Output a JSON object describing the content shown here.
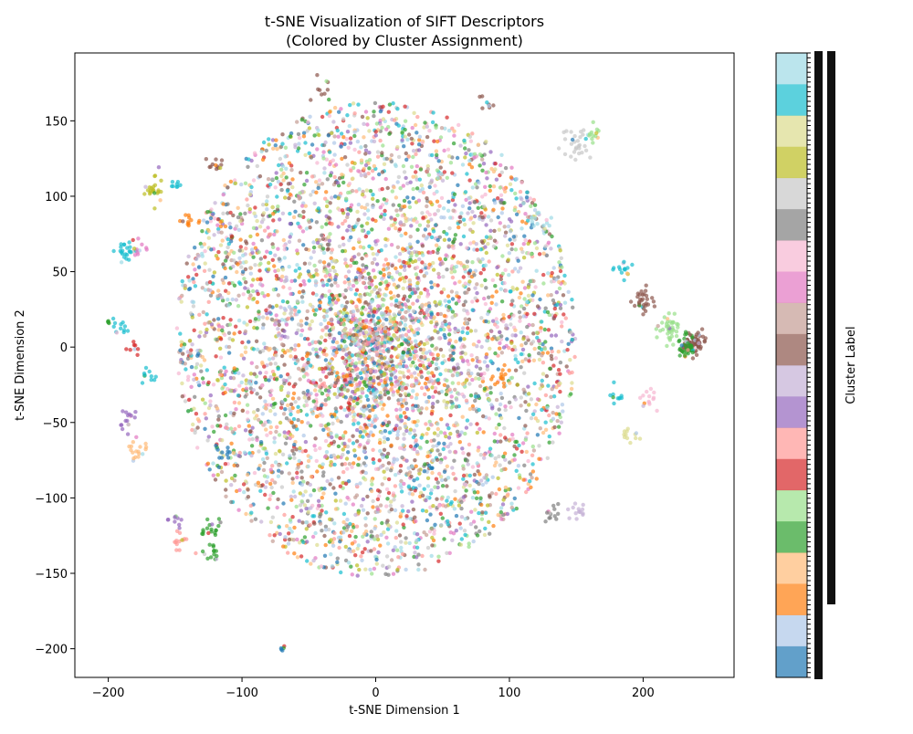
{
  "chart_data": {
    "type": "scatter",
    "title": "t-SNE Visualization of SIFT Descriptors",
    "subtitle": "(Colored by Cluster Assignment)",
    "xlabel": "t-SNE Dimension 1",
    "ylabel": "t-SNE Dimension 2",
    "xlim": [
      -225,
      268
    ],
    "ylim": [
      -219,
      195
    ],
    "xticks": [
      -200,
      -100,
      0,
      100,
      200
    ],
    "xtick_labels": [
      "−200",
      "−100",
      "0",
      "100",
      "200"
    ],
    "yticks": [
      -200,
      -150,
      -100,
      -50,
      0,
      50,
      100,
      150
    ],
    "ytick_labels": [
      "−200",
      "−150",
      "−100",
      "−50",
      "0",
      "50",
      "100",
      "150"
    ],
    "grid": false,
    "colorbar": {
      "label": "Cluster Label",
      "colormap": "tab20",
      "colors": [
        "#1f77b4",
        "#aec7e8",
        "#ff7f0e",
        "#ffbb78",
        "#2ca02c",
        "#98df8a",
        "#d62728",
        "#ff9896",
        "#9467bd",
        "#c5b0d5",
        "#8c564b",
        "#c49c94",
        "#e377c2",
        "#f7b6d2",
        "#7f7f7f",
        "#c7c7c7",
        "#bcbd22",
        "#dbdb8d",
        "#17becf",
        "#9edae5"
      ]
    },
    "point_alpha": 0.7,
    "point_radius": 2.2,
    "clusters": [
      {
        "x": 0,
        "y": 5,
        "r": 150,
        "n": 4600
      },
      {
        "x": 0,
        "y": -5,
        "r": 40,
        "n": 500
      },
      {
        "x": 237,
        "y": 3,
        "r": 7,
        "n": 70,
        "c": 10
      },
      {
        "x": 220,
        "y": 12,
        "r": 8,
        "n": 40,
        "c": 5
      },
      {
        "x": 232,
        "y": 0,
        "r": 7,
        "n": 40,
        "c": 4
      },
      {
        "x": 200,
        "y": 30,
        "r": 8,
        "n": 30,
        "c": 10
      },
      {
        "x": 185,
        "y": 50,
        "r": 6,
        "n": 15,
        "c": 18
      },
      {
        "x": 190,
        "y": -60,
        "r": 6,
        "n": 12,
        "c": 17
      },
      {
        "x": 205,
        "y": -35,
        "r": 8,
        "n": 14,
        "c": 13
      },
      {
        "x": 180,
        "y": -32,
        "r": 5,
        "n": 10,
        "c": 18
      },
      {
        "x": 150,
        "y": 135,
        "r": 9,
        "n": 30,
        "c": 15
      },
      {
        "x": 163,
        "y": 140,
        "r": 5,
        "n": 12,
        "c": 5
      },
      {
        "x": -187,
        "y": 65,
        "r": 6,
        "n": 22,
        "c": 18
      },
      {
        "x": -178,
        "y": 65,
        "r": 5,
        "n": 12,
        "c": 12
      },
      {
        "x": -190,
        "y": 12,
        "r": 6,
        "n": 12,
        "c": 18
      },
      {
        "x": -200,
        "y": 16,
        "r": 2,
        "n": 4,
        "c": 4
      },
      {
        "x": -165,
        "y": 105,
        "r": 8,
        "n": 24,
        "c": 16
      },
      {
        "x": -148,
        "y": 108,
        "r": 4,
        "n": 8,
        "c": 18
      },
      {
        "x": -185,
        "y": -48,
        "r": 6,
        "n": 16,
        "c": 8
      },
      {
        "x": -178,
        "y": -68,
        "r": 7,
        "n": 18,
        "c": 3
      },
      {
        "x": -170,
        "y": -18,
        "r": 6,
        "n": 10,
        "c": 18
      },
      {
        "x": -180,
        "y": -2,
        "r": 5,
        "n": 8,
        "c": 6
      },
      {
        "x": -140,
        "y": 84,
        "r": 6,
        "n": 12,
        "c": 2
      },
      {
        "x": -120,
        "y": 120,
        "r": 6,
        "n": 12,
        "c": 10
      },
      {
        "x": -125,
        "y": -120,
        "r": 7,
        "n": 18,
        "c": 4
      },
      {
        "x": -122,
        "y": -136,
        "r": 6,
        "n": 14,
        "c": 4
      },
      {
        "x": -145,
        "y": -128,
        "r": 6,
        "n": 14,
        "c": 7
      },
      {
        "x": -150,
        "y": -115,
        "r": 5,
        "n": 10,
        "c": 8
      },
      {
        "x": -113,
        "y": -72,
        "r": 6,
        "n": 12,
        "c": 0
      },
      {
        "x": -70,
        "y": -200,
        "r": 2,
        "n": 5,
        "c": 0
      },
      {
        "x": 130,
        "y": -112,
        "r": 7,
        "n": 14,
        "c": 14
      },
      {
        "x": 150,
        "y": -110,
        "r": 8,
        "n": 14,
        "c": 9
      },
      {
        "x": 82,
        "y": 163,
        "r": 5,
        "n": 8,
        "c": 10
      },
      {
        "x": -40,
        "y": 170,
        "r": 8,
        "n": 10,
        "c": 10
      },
      {
        "x": 95,
        "y": -20,
        "r": 8,
        "n": 14,
        "c": 2
      },
      {
        "x": 120,
        "y": 85,
        "r": 8,
        "n": 10,
        "c": 19
      }
    ]
  }
}
